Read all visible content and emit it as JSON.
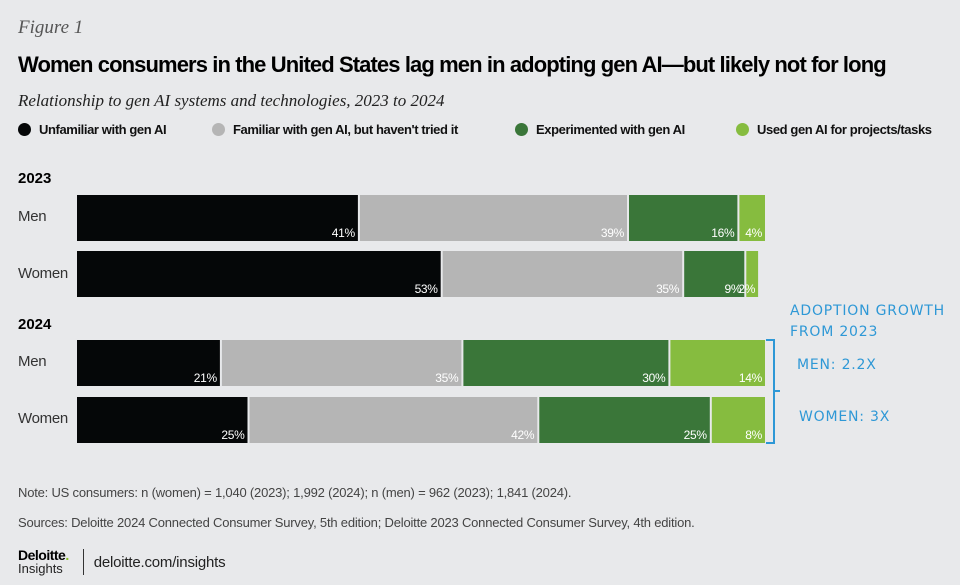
{
  "figure_label": "Figure 1",
  "chart_data": {
    "type": "bar",
    "orientation": "horizontal",
    "stacked": true,
    "title": "Women consumers in the United States lag men in adopting gen AI—but likely not for long",
    "subtitle": "Relationship to gen AI systems and technologies, 2023 to 2024",
    "unit": "%",
    "xlim": [
      0,
      100
    ],
    "legend_position": "top",
    "legend": [
      {
        "name": "Unfamiliar with gen AI",
        "color": "#050708"
      },
      {
        "name": "Familiar with gen AI, but haven't tried it",
        "color": "#b5b5b5"
      },
      {
        "name": "Experimented with gen AI",
        "color": "#3a7639"
      },
      {
        "name": "Used gen AI for projects/tasks",
        "color": "#86bc3f"
      }
    ],
    "groups": [
      {
        "year": "2023",
        "rows": [
          {
            "label": "Men",
            "values": [
              41,
              39,
              16,
              4
            ]
          },
          {
            "label": "Women",
            "values": [
              53,
              35,
              9,
              2
            ]
          }
        ]
      },
      {
        "year": "2024",
        "rows": [
          {
            "label": "Men",
            "values": [
              21,
              35,
              30,
              14
            ]
          },
          {
            "label": "Women",
            "values": [
              25,
              42,
              25,
              8
            ]
          }
        ]
      }
    ],
    "annotations": {
      "heading_line1": "ADOPTION GROWTH",
      "heading_line2": "FROM 2023",
      "men": "MEN: 2.2X",
      "women": "WOMEN: 3X",
      "color": "#2e98d6"
    }
  },
  "note": "Note: US consumers: n (women) = 1,040 (2023); 1,992 (2024); n (men) = 962 (2023); 1,841 (2024).",
  "sources": "Sources: Deloitte 2024 Connected Consumer Survey, 5th edition; Deloitte 2023 Connected Consumer Survey, 4th edition.",
  "footer": {
    "logo_main": "Deloitte",
    "logo_dot": ".",
    "logo_sub": "Insights",
    "url": "deloitte.com/insights"
  }
}
